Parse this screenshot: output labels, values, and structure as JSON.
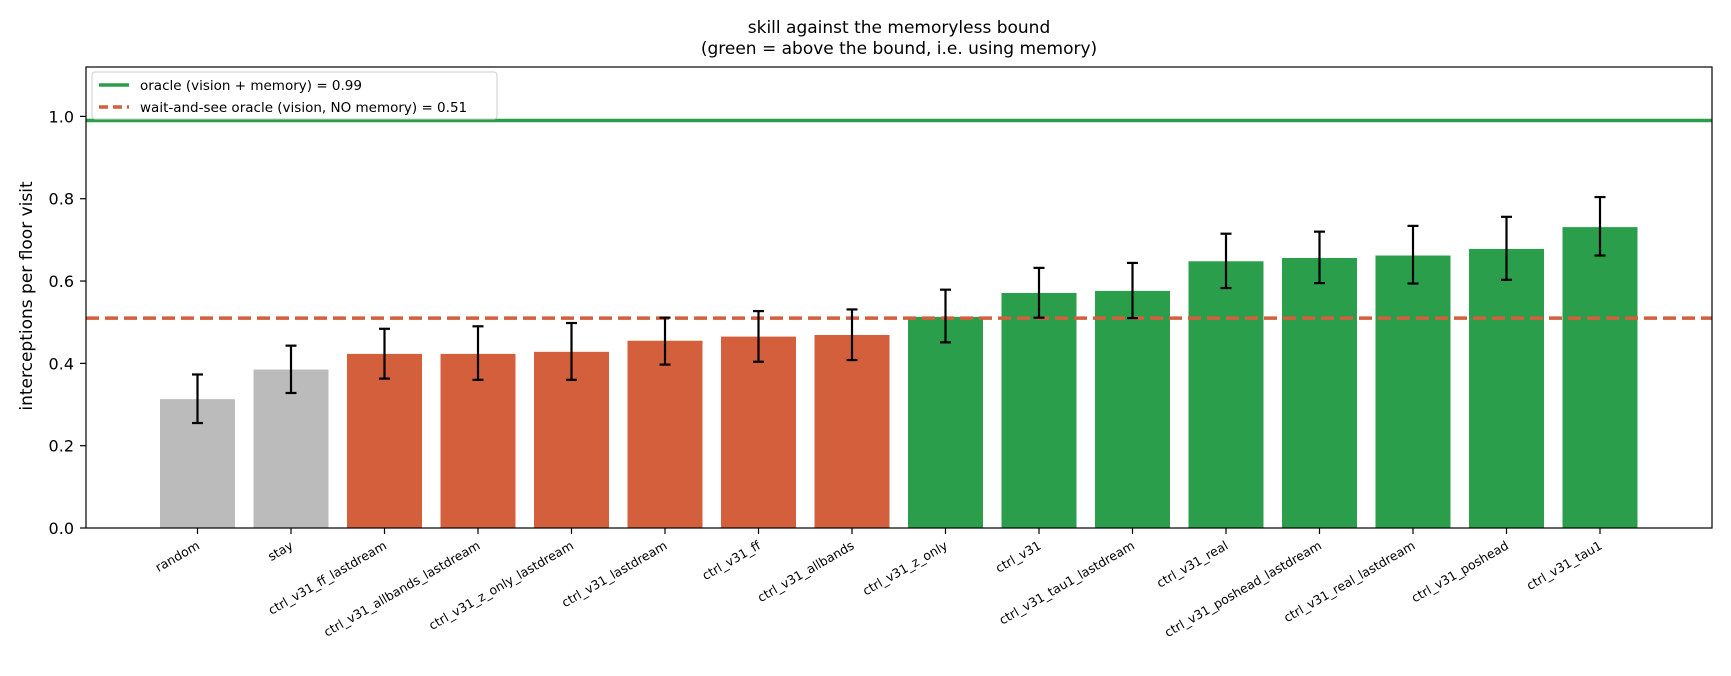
{
  "chart_data": {
    "type": "bar",
    "title": "skill against the memoryless bound",
    "subtitle": "(green = above the bound, i.e. using memory)",
    "ylabel": "interceptions per floor visit",
    "xlabel": "",
    "ylim": [
      0,
      1.12
    ],
    "yticks": [
      "0.0",
      "0.2",
      "0.4",
      "0.6",
      "0.8",
      "1.0"
    ],
    "grid": false,
    "legend_position": "top-left",
    "categories": [
      "random",
      "stay",
      "ctrl_v31_ff_lastdream",
      "ctrl_v31_allbands_lastdream",
      "ctrl_v31_z_only_lastdream",
      "ctrl_v31_lastdream",
      "ctrl_v31_ff",
      "ctrl_v31_allbands",
      "ctrl_v31_z_only",
      "ctrl_v31",
      "ctrl_v31_tau1_lastdream",
      "ctrl_v31_real",
      "ctrl_v31_poshead_lastdream",
      "ctrl_v31_real_lastdream",
      "ctrl_v31_poshead",
      "ctrl_v31_tau1"
    ],
    "values": [
      0.313,
      0.385,
      0.423,
      0.423,
      0.428,
      0.455,
      0.465,
      0.469,
      0.513,
      0.571,
      0.576,
      0.648,
      0.656,
      0.662,
      0.678,
      0.731
    ],
    "err_low": [
      0.255,
      0.328,
      0.363,
      0.36,
      0.36,
      0.397,
      0.404,
      0.408,
      0.451,
      0.511,
      0.51,
      0.583,
      0.595,
      0.594,
      0.603,
      0.662
    ],
    "err_high": [
      0.373,
      0.443,
      0.484,
      0.49,
      0.498,
      0.511,
      0.527,
      0.531,
      0.579,
      0.632,
      0.644,
      0.715,
      0.72,
      0.734,
      0.756,
      0.804
    ],
    "bar_groups": [
      "baseline",
      "baseline",
      "below",
      "below",
      "below",
      "below",
      "below",
      "below",
      "above",
      "above",
      "above",
      "above",
      "above",
      "above",
      "above",
      "above"
    ],
    "colors": {
      "baseline": "#bbbbbb",
      "below": "#d45f3c",
      "above": "#2b9e4c",
      "oracle_line": "#2b9e4c",
      "bound_line": "#d45f3c",
      "error_bar": "#000000"
    },
    "reference_lines": [
      {
        "label": "oracle (vision + memory) = 0.99",
        "value": 0.99,
        "style": "solid",
        "color": "#2b9e4c"
      },
      {
        "label": "wait-and-see oracle (vision, NO memory) = 0.51",
        "value": 0.51,
        "style": "dashed",
        "color": "#d45f3c"
      }
    ]
  }
}
